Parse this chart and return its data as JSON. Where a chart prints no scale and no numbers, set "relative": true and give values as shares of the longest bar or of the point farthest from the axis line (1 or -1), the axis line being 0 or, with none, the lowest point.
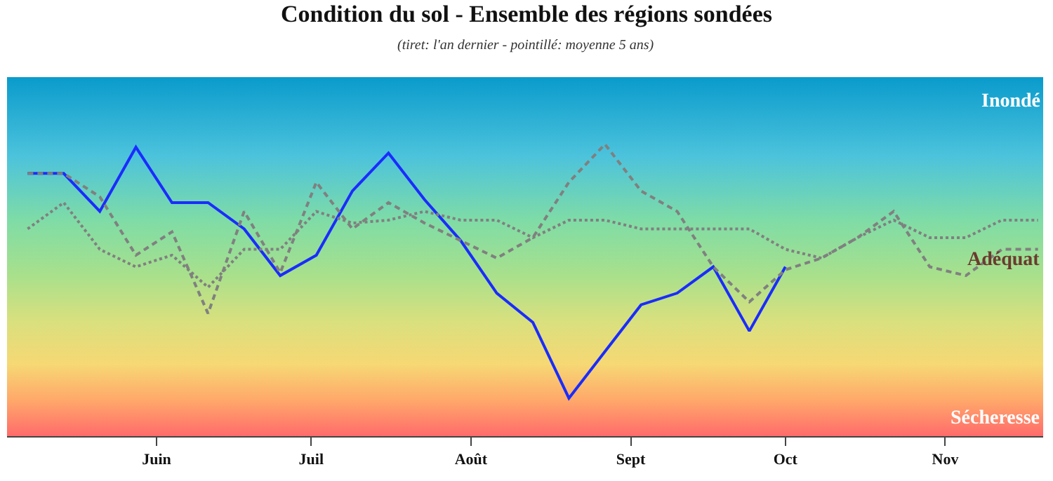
{
  "chart_data": {
    "type": "line",
    "title": "Condition du sol - Ensemble des régions sondées",
    "subtitle": "(tiret: l'an dernier - pointillé: moyenne 5 ans)",
    "relative": true,
    "x": [
      "--05-07",
      "--05-14",
      "--05-21",
      "--05-28",
      "--06-04",
      "--06-11",
      "--06-18",
      "--06-25",
      "--07-02",
      "--07-09",
      "--07-16",
      "--07-23",
      "--07-30",
      "--08-06",
      "--08-13",
      "--08-20",
      "--08-27",
      "--09-03",
      "--09-10",
      "--09-17",
      "--09-24",
      "--10-01",
      "--10-08",
      "--10-15",
      "--10-22",
      "--10-29",
      "--11-05",
      "--11-12",
      "--11-19"
    ],
    "xlim": [
      "--05-03",
      "--11-20"
    ],
    "xticks": [
      {
        "value": "--06-01",
        "label": "Juin"
      },
      {
        "value": "--07-01",
        "label": "Juil"
      },
      {
        "value": "--08-01",
        "label": "Août"
      },
      {
        "value": "--09-01",
        "label": "Sept"
      },
      {
        "value": "--10-01",
        "label": "Oct"
      },
      {
        "value": "--11-01",
        "label": "Nov"
      }
    ],
    "series": [
      {
        "color": "#1a2cff",
        "line_style": "solid",
        "values": [
          0.9,
          0.9,
          0.77,
          0.99,
          0.8,
          0.8,
          0.71,
          0.55,
          0.62,
          0.84,
          0.97,
          0.81,
          0.67,
          0.49,
          0.39,
          0.13,
          0.29,
          0.45,
          0.49,
          0.58,
          0.36,
          0.58,
          null,
          null,
          null,
          null,
          null,
          null,
          null
        ]
      },
      {
        "color": "#808080",
        "line_style": "dotted",
        "values": [
          0.71,
          0.8,
          0.64,
          0.58,
          0.62,
          0.51,
          0.64,
          0.64,
          0.77,
          0.73,
          0.74,
          0.77,
          0.74,
          0.74,
          0.68,
          0.74,
          0.74,
          0.71,
          0.71,
          0.71,
          0.71,
          0.64,
          0.61,
          0.68,
          0.74,
          0.68,
          0.68,
          0.74,
          0.74
        ]
      },
      {
        "color": "#808080",
        "line_style": "dashed",
        "values": [
          0.9,
          0.9,
          0.82,
          0.62,
          0.7,
          0.42,
          0.77,
          0.56,
          0.87,
          0.71,
          0.8,
          0.73,
          0.67,
          0.61,
          0.68,
          0.87,
          1.0,
          0.84,
          0.77,
          0.58,
          0.46,
          0.57,
          0.61,
          0.68,
          0.77,
          0.58,
          0.55,
          0.64,
          0.64
        ]
      }
    ],
    "annotations": [
      "Inondé",
      "Adéquat",
      "Sécheresse"
    ],
    "marker": "none"
  }
}
